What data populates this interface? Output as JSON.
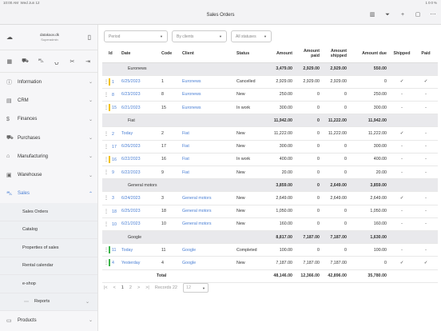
{
  "status_bar": {
    "time": "10:00 AM",
    "date": "Wed Jun 12",
    "indicators": "100%"
  },
  "window": {
    "title": "Sales Orders"
  },
  "sidebar": {
    "user_name": "datakaov.dk",
    "user_role": "Superadmin",
    "items": [
      {
        "label": "Information"
      },
      {
        "label": "CRM"
      },
      {
        "label": "Finances"
      },
      {
        "label": "Purchases"
      },
      {
        "label": "Manufacturing"
      },
      {
        "label": "Warehouse"
      },
      {
        "label": "Sales"
      }
    ],
    "sales_sub": [
      {
        "label": "Sales Orders"
      },
      {
        "label": "Catalog"
      },
      {
        "label": "Properties of sales"
      },
      {
        "label": "Rental calendar"
      },
      {
        "label": "e-shop"
      }
    ],
    "reports_label": "Reports",
    "products_label": "Products"
  },
  "filters": {
    "period": "Period",
    "clients": "By clients",
    "statuses": "All statuses"
  },
  "table": {
    "headers": {
      "id": "Id",
      "date": "Date",
      "code": "Code",
      "client": "Client",
      "status": "Status",
      "amount": "Amount",
      "amount_paid": "Amount paid",
      "amount_shipped": "Amount shipped",
      "amount_due": "Amount due",
      "shipped": "Shipped",
      "paid": "Paid"
    },
    "groups": [
      {
        "name": "Euronews",
        "amount": "3,479.00",
        "paid": "2,929.00",
        "shipped": "2,929.00",
        "due": "550.00",
        "rows": [
          {
            "id": "1",
            "date": "6/25/2023",
            "code": "1",
            "client": "Euronews",
            "status": "Cancelled",
            "amount": "2,929.00",
            "paid": "2,929.00",
            "shipped": "2,929.00",
            "due": "0",
            "shipped_mark": "✓",
            "paid_mark": "✓",
            "flag": "#f2c200"
          },
          {
            "id": "8",
            "date": "6/23/2023",
            "code": "8",
            "client": "Euronews",
            "status": "New",
            "amount": "250.00",
            "paid": "0",
            "shipped": "0",
            "due": "250.00",
            "shipped_mark": "-",
            "paid_mark": "-",
            "flag": ""
          },
          {
            "id": "15",
            "date": "6/21/2023",
            "code": "15",
            "client": "Euronews",
            "status": "In work",
            "amount": "300.00",
            "paid": "0",
            "shipped": "0",
            "due": "300.00",
            "shipped_mark": "-",
            "paid_mark": "-",
            "flag": "#f2c200"
          }
        ]
      },
      {
        "name": "Fiat",
        "amount": "11,942.00",
        "paid": "0",
        "shipped": "11,222.00",
        "due": "11,942.00",
        "rows": [
          {
            "id": "2",
            "date": "Today",
            "code": "2",
            "client": "Fiat",
            "status": "New",
            "amount": "11,222.00",
            "paid": "0",
            "shipped": "11,222.00",
            "due": "11,222.00",
            "shipped_mark": "✓",
            "paid_mark": "-",
            "flag": ""
          },
          {
            "id": "17",
            "date": "6/26/2023",
            "code": "17",
            "client": "Fiat",
            "status": "New",
            "amount": "300.00",
            "paid": "0",
            "shipped": "0",
            "due": "300.00",
            "shipped_mark": "-",
            "paid_mark": "-",
            "flag": ""
          },
          {
            "id": "16",
            "date": "6/22/2023",
            "code": "16",
            "client": "Fiat",
            "status": "In work",
            "amount": "400.00",
            "paid": "0",
            "shipped": "0",
            "due": "400.00",
            "shipped_mark": "-",
            "paid_mark": "-",
            "flag": "#f2c200"
          },
          {
            "id": "9",
            "date": "6/22/2023",
            "code": "9",
            "client": "Fiat",
            "status": "New",
            "amount": "20.00",
            "paid": "0",
            "shipped": "0",
            "due": "20.00",
            "shipped_mark": "-",
            "paid_mark": "-",
            "flag": ""
          }
        ]
      },
      {
        "name": "General motors",
        "amount": "3,859.00",
        "paid": "0",
        "shipped": "2,649.00",
        "due": "3,859.00",
        "rows": [
          {
            "id": "3",
            "date": "6/24/2023",
            "code": "3",
            "client": "General motors",
            "status": "New",
            "amount": "2,649.00",
            "paid": "0",
            "shipped": "2,649.00",
            "due": "2,649.00",
            "shipped_mark": "✓",
            "paid_mark": "-",
            "flag": ""
          },
          {
            "id": "18",
            "date": "6/25/2023",
            "code": "18",
            "client": "General motors",
            "status": "New",
            "amount": "1,050.00",
            "paid": "0",
            "shipped": "0",
            "due": "1,050.00",
            "shipped_mark": "-",
            "paid_mark": "-",
            "flag": ""
          },
          {
            "id": "10",
            "date": "6/21/2023",
            "code": "10",
            "client": "General motors",
            "status": "New",
            "amount": "160.00",
            "paid": "0",
            "shipped": "0",
            "due": "160.00",
            "shipped_mark": "-",
            "paid_mark": "-",
            "flag": ""
          }
        ]
      },
      {
        "name": "Google",
        "amount": "8,817.00",
        "paid": "7,187.00",
        "shipped": "7,187.00",
        "due": "1,630.00",
        "rows": [
          {
            "id": "11",
            "date": "Today",
            "code": "11",
            "client": "Google",
            "status": "Completed",
            "amount": "100.00",
            "paid": "0",
            "shipped": "0",
            "due": "100.00",
            "shipped_mark": "-",
            "paid_mark": "-",
            "flag": "#3cb44b"
          },
          {
            "id": "4",
            "date": "Yesterday",
            "code": "4",
            "client": "Google",
            "status": "New",
            "amount": "7,187.00",
            "paid": "7,187.00",
            "shipped": "7,187.00",
            "due": "0",
            "shipped_mark": "✓",
            "paid_mark": "✓",
            "flag": "#3cb44b"
          }
        ]
      }
    ],
    "total": {
      "label": "Total",
      "amount": "48,146.00",
      "paid": "12,366.00",
      "shipped": "42,896.00",
      "due": "35,780.00"
    }
  },
  "pager": {
    "first": "|<",
    "prev": "<",
    "page1": "1",
    "page2": "2",
    "next": ">",
    "last": ">|",
    "records_label": "Records 22",
    "page_size": "12"
  },
  "colors": {
    "accent": "#4a7fd4",
    "group_bg": "#e9e9ec",
    "flag_yellow": "#f2c200",
    "flag_green": "#3cb44b"
  }
}
